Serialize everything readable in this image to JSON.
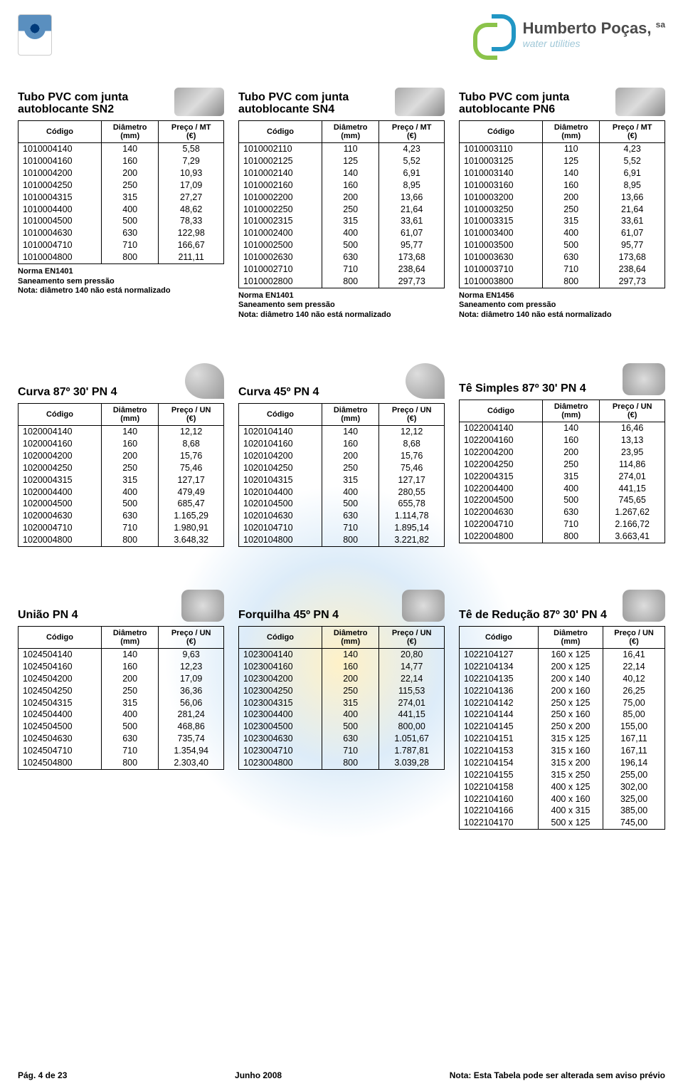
{
  "company": {
    "name": "Humberto Poças, ",
    "suffix": "sa",
    "tagline": "water utilities"
  },
  "columns": {
    "code": "Código",
    "diameter": "Diâmetro (mm)",
    "price_mt": "Preço / MT (€)",
    "price_un": "Preço / UN (€)"
  },
  "tables": {
    "sn2": {
      "title": "Tubo PVC com junta autoblocante SN2",
      "price_header": "mt",
      "rows": [
        [
          "1010004140",
          "140",
          "5,58"
        ],
        [
          "1010004160",
          "160",
          "7,29"
        ],
        [
          "1010004200",
          "200",
          "10,93"
        ],
        [
          "1010004250",
          "250",
          "17,09"
        ],
        [
          "1010004315",
          "315",
          "27,27"
        ],
        [
          "1010004400",
          "400",
          "48,62"
        ],
        [
          "1010004500",
          "500",
          "78,33"
        ],
        [
          "1010004630",
          "630",
          "122,98"
        ],
        [
          "1010004710",
          "710",
          "166,67"
        ],
        [
          "1010004800",
          "800",
          "211,11"
        ]
      ],
      "notes": [
        "Norma EN1401",
        "Saneamento sem pressão",
        "Nota: diâmetro 140 não está normalizado"
      ]
    },
    "sn4": {
      "title": "Tubo PVC com junta autoblocante SN4",
      "price_header": "mt",
      "rows": [
        [
          "1010002110",
          "110",
          "4,23"
        ],
        [
          "1010002125",
          "125",
          "5,52"
        ],
        [
          "1010002140",
          "140",
          "6,91"
        ],
        [
          "1010002160",
          "160",
          "8,95"
        ],
        [
          "1010002200",
          "200",
          "13,66"
        ],
        [
          "1010002250",
          "250",
          "21,64"
        ],
        [
          "1010002315",
          "315",
          "33,61"
        ],
        [
          "1010002400",
          "400",
          "61,07"
        ],
        [
          "1010002500",
          "500",
          "95,77"
        ],
        [
          "1010002630",
          "630",
          "173,68"
        ],
        [
          "1010002710",
          "710",
          "238,64"
        ],
        [
          "1010002800",
          "800",
          "297,73"
        ]
      ],
      "notes": [
        "Norma EN1401",
        "Saneamento sem pressão",
        "Nota: diâmetro 140 não está normalizado"
      ]
    },
    "pn6": {
      "title": "Tubo PVC com junta autoblocante PN6",
      "price_header": "mt",
      "rows": [
        [
          "1010003110",
          "110",
          "4,23"
        ],
        [
          "1010003125",
          "125",
          "5,52"
        ],
        [
          "1010003140",
          "140",
          "6,91"
        ],
        [
          "1010003160",
          "160",
          "8,95"
        ],
        [
          "1010003200",
          "200",
          "13,66"
        ],
        [
          "1010003250",
          "250",
          "21,64"
        ],
        [
          "1010003315",
          "315",
          "33,61"
        ],
        [
          "1010003400",
          "400",
          "61,07"
        ],
        [
          "1010003500",
          "500",
          "95,77"
        ],
        [
          "1010003630",
          "630",
          "173,68"
        ],
        [
          "1010003710",
          "710",
          "238,64"
        ],
        [
          "1010003800",
          "800",
          "297,73"
        ]
      ],
      "notes": [
        "Norma EN1456",
        "Saneamento com pressão",
        "Nota: diâmetro 140 não está normalizado"
      ]
    },
    "curva87": {
      "title": "Curva 87º 30' PN 4",
      "price_header": "un",
      "rows": [
        [
          "1020004140",
          "140",
          "12,12"
        ],
        [
          "1020004160",
          "160",
          "8,68"
        ],
        [
          "1020004200",
          "200",
          "15,76"
        ],
        [
          "1020004250",
          "250",
          "75,46"
        ],
        [
          "1020004315",
          "315",
          "127,17"
        ],
        [
          "1020004400",
          "400",
          "479,49"
        ],
        [
          "1020004500",
          "500",
          "685,47"
        ],
        [
          "1020004630",
          "630",
          "1.165,29"
        ],
        [
          "1020004710",
          "710",
          "1.980,91"
        ],
        [
          "1020004800",
          "800",
          "3.648,32"
        ]
      ],
      "notes": []
    },
    "curva45": {
      "title": "Curva 45º PN 4",
      "price_header": "un",
      "rows": [
        [
          "1020104140",
          "140",
          "12,12"
        ],
        [
          "1020104160",
          "160",
          "8,68"
        ],
        [
          "1020104200",
          "200",
          "15,76"
        ],
        [
          "1020104250",
          "250",
          "75,46"
        ],
        [
          "1020104315",
          "315",
          "127,17"
        ],
        [
          "1020104400",
          "400",
          "280,55"
        ],
        [
          "1020104500",
          "500",
          "655,78"
        ],
        [
          "1020104630",
          "630",
          "1.114,78"
        ],
        [
          "1020104710",
          "710",
          "1.895,14"
        ],
        [
          "1020104800",
          "800",
          "3.221,82"
        ]
      ],
      "notes": []
    },
    "tesimples": {
      "title": "Tê Simples 87º 30' PN 4",
      "price_header": "un",
      "rows": [
        [
          "1022004140",
          "140",
          "16,46"
        ],
        [
          "1022004160",
          "160",
          "13,13"
        ],
        [
          "1022004200",
          "200",
          "23,95"
        ],
        [
          "1022004250",
          "250",
          "114,86"
        ],
        [
          "1022004315",
          "315",
          "274,01"
        ],
        [
          "1022004400",
          "400",
          "441,15"
        ],
        [
          "1022004500",
          "500",
          "745,65"
        ],
        [
          "1022004630",
          "630",
          "1.267,62"
        ],
        [
          "1022004710",
          "710",
          "2.166,72"
        ],
        [
          "1022004800",
          "800",
          "3.663,41"
        ]
      ],
      "notes": []
    },
    "uniao": {
      "title": "União PN 4",
      "price_header": "un",
      "rows": [
        [
          "1024504140",
          "140",
          "9,63"
        ],
        [
          "1024504160",
          "160",
          "12,23"
        ],
        [
          "1024504200",
          "200",
          "17,09"
        ],
        [
          "1024504250",
          "250",
          "36,36"
        ],
        [
          "1024504315",
          "315",
          "56,06"
        ],
        [
          "1024504400",
          "400",
          "281,24"
        ],
        [
          "1024504500",
          "500",
          "468,86"
        ],
        [
          "1024504630",
          "630",
          "735,74"
        ],
        [
          "1024504710",
          "710",
          "1.354,94"
        ],
        [
          "1024504800",
          "800",
          "2.303,40"
        ]
      ],
      "notes": []
    },
    "forquilha": {
      "title": "Forquilha 45º PN 4",
      "price_header": "un",
      "rows": [
        [
          "1023004140",
          "140",
          "20,80"
        ],
        [
          "1023004160",
          "160",
          "14,77"
        ],
        [
          "1023004200",
          "200",
          "22,14"
        ],
        [
          "1023004250",
          "250",
          "115,53"
        ],
        [
          "1023004315",
          "315",
          "274,01"
        ],
        [
          "1023004400",
          "400",
          "441,15"
        ],
        [
          "1023004500",
          "500",
          "800,00"
        ],
        [
          "1023004630",
          "630",
          "1.051,67"
        ],
        [
          "1023004710",
          "710",
          "1.787,81"
        ],
        [
          "1023004800",
          "800",
          "3.039,28"
        ]
      ],
      "notes": []
    },
    "tereducao": {
      "title": "Tê de Redução 87º 30' PN 4",
      "price_header": "un",
      "rows": [
        [
          "1022104127",
          "160 x 125",
          "16,41"
        ],
        [
          "1022104134",
          "200 x 125",
          "22,14"
        ],
        [
          "1022104135",
          "200 x 140",
          "40,12"
        ],
        [
          "1022104136",
          "200 x 160",
          "26,25"
        ],
        [
          "1022104142",
          "250 x 125",
          "75,00"
        ],
        [
          "1022104144",
          "250 x 160",
          "85,00"
        ],
        [
          "1022104145",
          "250 x 200",
          "155,00"
        ],
        [
          "1022104151",
          "315 x 125",
          "167,11"
        ],
        [
          "1022104153",
          "315 x 160",
          "167,11"
        ],
        [
          "1022104154",
          "315 x 200",
          "196,14"
        ],
        [
          "1022104155",
          "315 x 250",
          "255,00"
        ],
        [
          "1022104158",
          "400 x 125",
          "302,00"
        ],
        [
          "1022104160",
          "400 x 160",
          "325,00"
        ],
        [
          "1022104166",
          "400 x 315",
          "385,00"
        ],
        [
          "1022104170",
          "500 x 125",
          "745,00"
        ]
      ],
      "notes": []
    }
  },
  "footer": {
    "page": "Pág. 4 de 23",
    "date": "Junho 2008",
    "note": "Nota: Esta Tabela pode ser alterada sem aviso prévio"
  }
}
